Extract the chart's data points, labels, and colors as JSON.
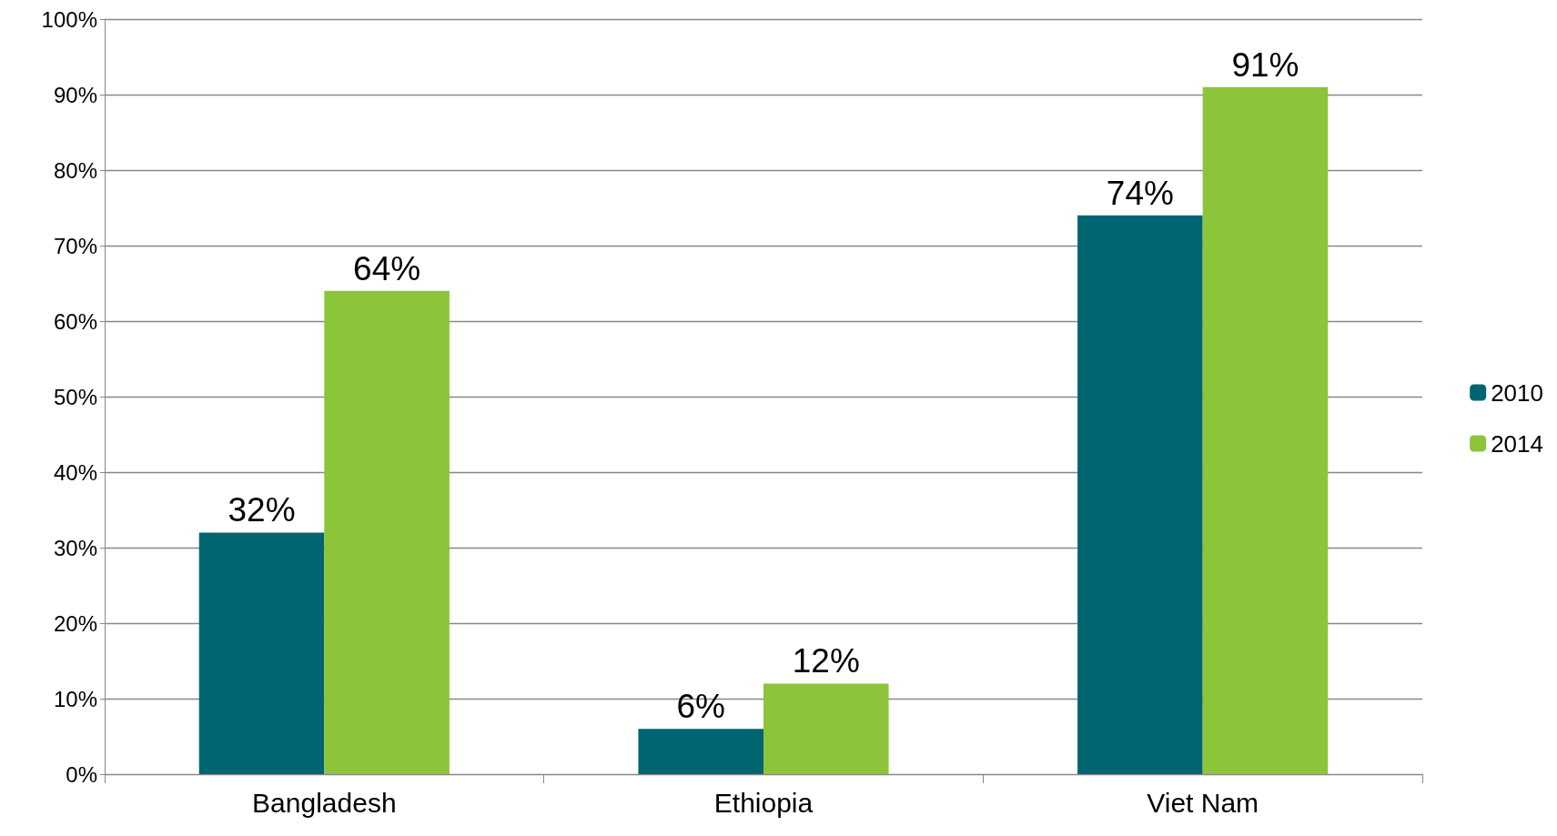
{
  "chart_data": {
    "type": "bar",
    "categories": [
      "Bangladesh",
      "Ethiopia",
      "Viet Nam"
    ],
    "series": [
      {
        "name": "2010",
        "color": "#006570",
        "values": [
          32,
          6,
          74
        ],
        "value_labels": [
          "32%",
          "6%",
          "74%"
        ]
      },
      {
        "name": "2014",
        "color": "#8cc43a",
        "values": [
          64,
          12,
          91
        ],
        "value_labels": [
          "64%",
          "12%",
          "91%"
        ]
      }
    ],
    "ylim": [
      0,
      100
    ],
    "yticks": [
      {
        "value": 0,
        "label": "0%"
      },
      {
        "value": 10,
        "label": "10%"
      },
      {
        "value": 20,
        "label": "20%"
      },
      {
        "value": 30,
        "label": "30%"
      },
      {
        "value": 40,
        "label": "40%"
      },
      {
        "value": 50,
        "label": "50%"
      },
      {
        "value": 60,
        "label": "60%"
      },
      {
        "value": 70,
        "label": "70%"
      },
      {
        "value": 80,
        "label": "80%"
      },
      {
        "value": 90,
        "label": "90%"
      },
      {
        "value": 100,
        "label": "100%"
      }
    ],
    "grid": "y",
    "legend": "right"
  }
}
